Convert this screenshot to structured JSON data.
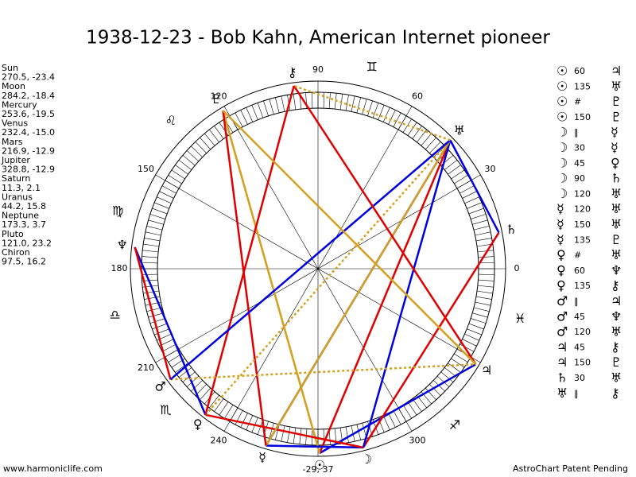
{
  "title": "1938-12-23 - Bob Kahn, American Internet pioneer",
  "planets": [
    {
      "name": "Sun",
      "coords": "270.5, -23.4",
      "glyph": "☉"
    },
    {
      "name": "Moon",
      "coords": "284.2, -18.4",
      "glyph": "☽"
    },
    {
      "name": "Mercury",
      "coords": "253.6, -19.5",
      "glyph": "☿"
    },
    {
      "name": "Venus",
      "coords": "232.4, -15.0",
      "glyph": "♀"
    },
    {
      "name": "Mars",
      "coords": "216.9, -12.9",
      "glyph": "♂"
    },
    {
      "name": "Jupiter",
      "coords": "328.8, -12.9",
      "glyph": "♃"
    },
    {
      "name": "Saturn",
      "coords": "11.3, 2.1",
      "glyph": "♄"
    },
    {
      "name": "Uranus",
      "coords": "44.2, 15.8",
      "glyph": "♅"
    },
    {
      "name": "Neptune",
      "coords": "173.3, 3.7",
      "glyph": "♆"
    },
    {
      "name": "Pluto",
      "coords": "121.0, 23.2",
      "glyph": "♇"
    },
    {
      "name": "Chiron",
      "coords": "97.5, 16.2",
      "glyph": "⚷"
    }
  ],
  "aspects": [
    {
      "p1": "☉",
      "aspect": "60",
      "p2": "♃"
    },
    {
      "p1": "☉",
      "aspect": "135",
      "p2": "♅"
    },
    {
      "p1": "☉",
      "aspect": "#",
      "p2": "♇"
    },
    {
      "p1": "☉",
      "aspect": "150",
      "p2": "♇"
    },
    {
      "p1": "☽",
      "aspect": "‖",
      "p2": "☿"
    },
    {
      "p1": "☽",
      "aspect": "30",
      "p2": "☿"
    },
    {
      "p1": "☽",
      "aspect": "45",
      "p2": "♀"
    },
    {
      "p1": "☽",
      "aspect": "90",
      "p2": "♄"
    },
    {
      "p1": "☽",
      "aspect": "120",
      "p2": "♅"
    },
    {
      "p1": "☿",
      "aspect": "120",
      "p2": "♅"
    },
    {
      "p1": "☿",
      "aspect": "150",
      "p2": "♅"
    },
    {
      "p1": "☿",
      "aspect": "135",
      "p2": "♇"
    },
    {
      "p1": "♀",
      "aspect": "#",
      "p2": "♅"
    },
    {
      "p1": "♀",
      "aspect": "60",
      "p2": "♆"
    },
    {
      "p1": "♀",
      "aspect": "135",
      "p2": "⚷"
    },
    {
      "p1": "♂",
      "aspect": "‖",
      "p2": "♃"
    },
    {
      "p1": "♂",
      "aspect": "45",
      "p2": "♆"
    },
    {
      "p1": "♂",
      "aspect": "120",
      "p2": "♅"
    },
    {
      "p1": "♃",
      "aspect": "45",
      "p2": "⚷"
    },
    {
      "p1": "♃",
      "aspect": "150",
      "p2": "♇"
    },
    {
      "p1": "♄",
      "aspect": "30",
      "p2": "♅"
    },
    {
      "p1": "♅",
      "aspect": "‖",
      "p2": "⚷"
    }
  ],
  "degree_labels": [
    0,
    30,
    60,
    90,
    120,
    150,
    180,
    210,
    240,
    300
  ],
  "zodiac": [
    "♊",
    "♌",
    "♍",
    "♎",
    "♏",
    "♐",
    "♓"
  ],
  "bottom_label": "-29, 37",
  "footer": {
    "left": "www.harmoniclife.com",
    "right": "AstroChart Patent Pending"
  }
}
